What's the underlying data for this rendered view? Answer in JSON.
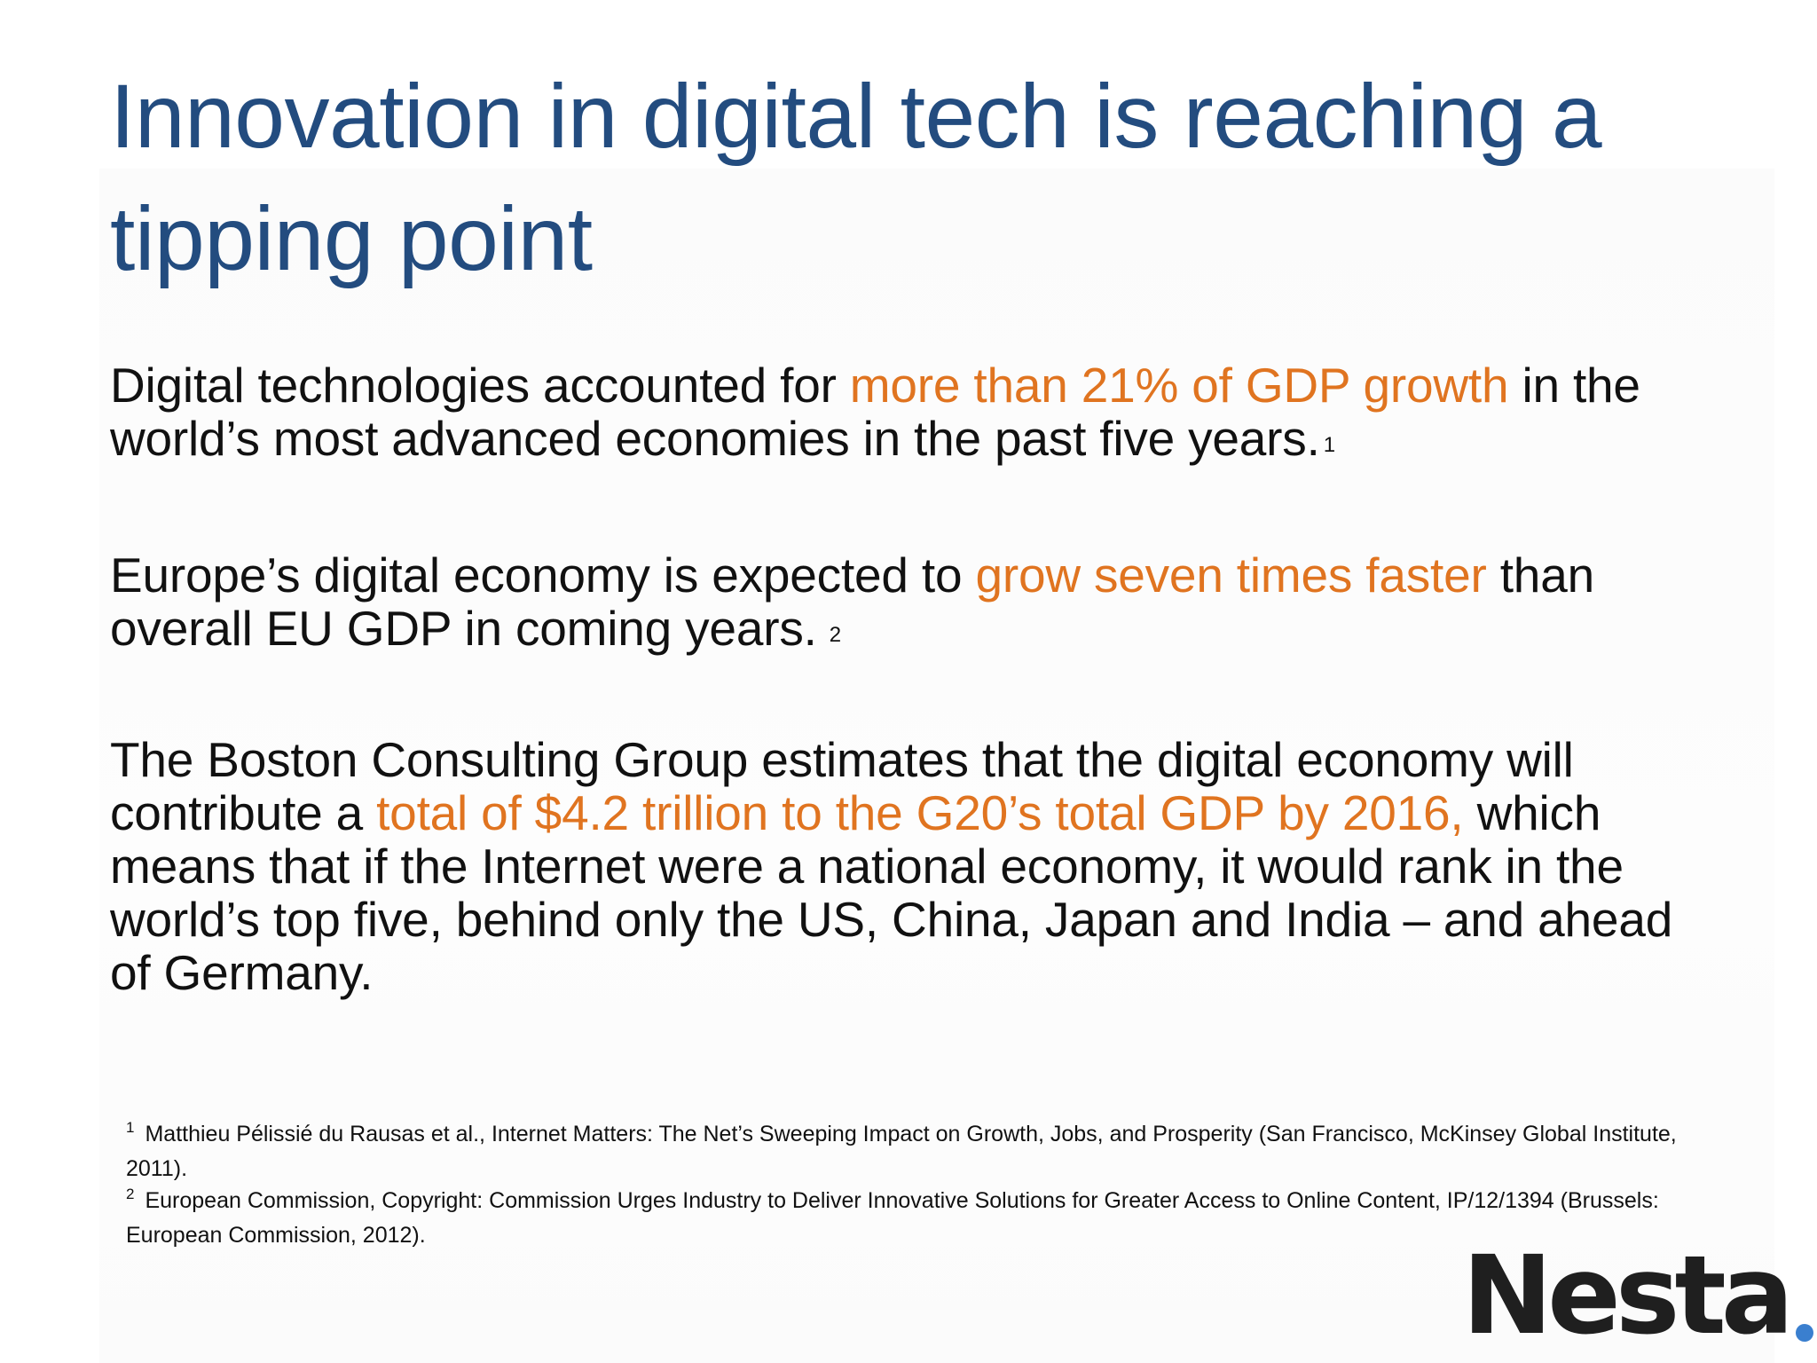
{
  "slide": {
    "title": "Innovation in digital tech is reaching a tipping point"
  },
  "paragraphs": [
    {
      "before": "Digital technologies accounted for ",
      "highlight": "more than 21% of GDP growth",
      "after": " in the world’s most advanced economies in the past five years.",
      "ref": "1"
    },
    {
      "before": "Europe’s digital economy is expected to ",
      "highlight": "grow seven times faster",
      "after": " than overall EU GDP in coming years.",
      "ref": "2"
    },
    {
      "before": "The Boston Consulting Group estimates that the digital economy will contribute a ",
      "highlight": "total of $4.2 trillion to the G20’s total GDP by 2016,",
      "after": " which means that if the Internet were a national economy, it would rank in the world’s top five, behind only the US, China, Japan and India – and ahead of Germany.",
      "ref": ""
    }
  ],
  "footnotes": [
    {
      "num": "1",
      "text": "Matthieu Pélissié du Rausas et al., Internet Matters: The Net’s Sweeping Impact on Growth, Jobs, and Prosperity (San Francisco, McKinsey Global Institute, 2011)."
    },
    {
      "num": "2",
      "text": "European Commission, Copyright: Commission Urges Industry to Deliver Innovative Solutions for Greater Access to Online Content, IP/12/1394 (Brussels: European Commission, 2012)."
    }
  ],
  "logo": {
    "text": "Nesta",
    "dot_colors": [
      "#3a7fcf",
      "#9dc1e8",
      "#cfe0f3"
    ]
  },
  "colors": {
    "title": "#234c7f",
    "body_text": "#111111",
    "highlight": "#e07420"
  }
}
